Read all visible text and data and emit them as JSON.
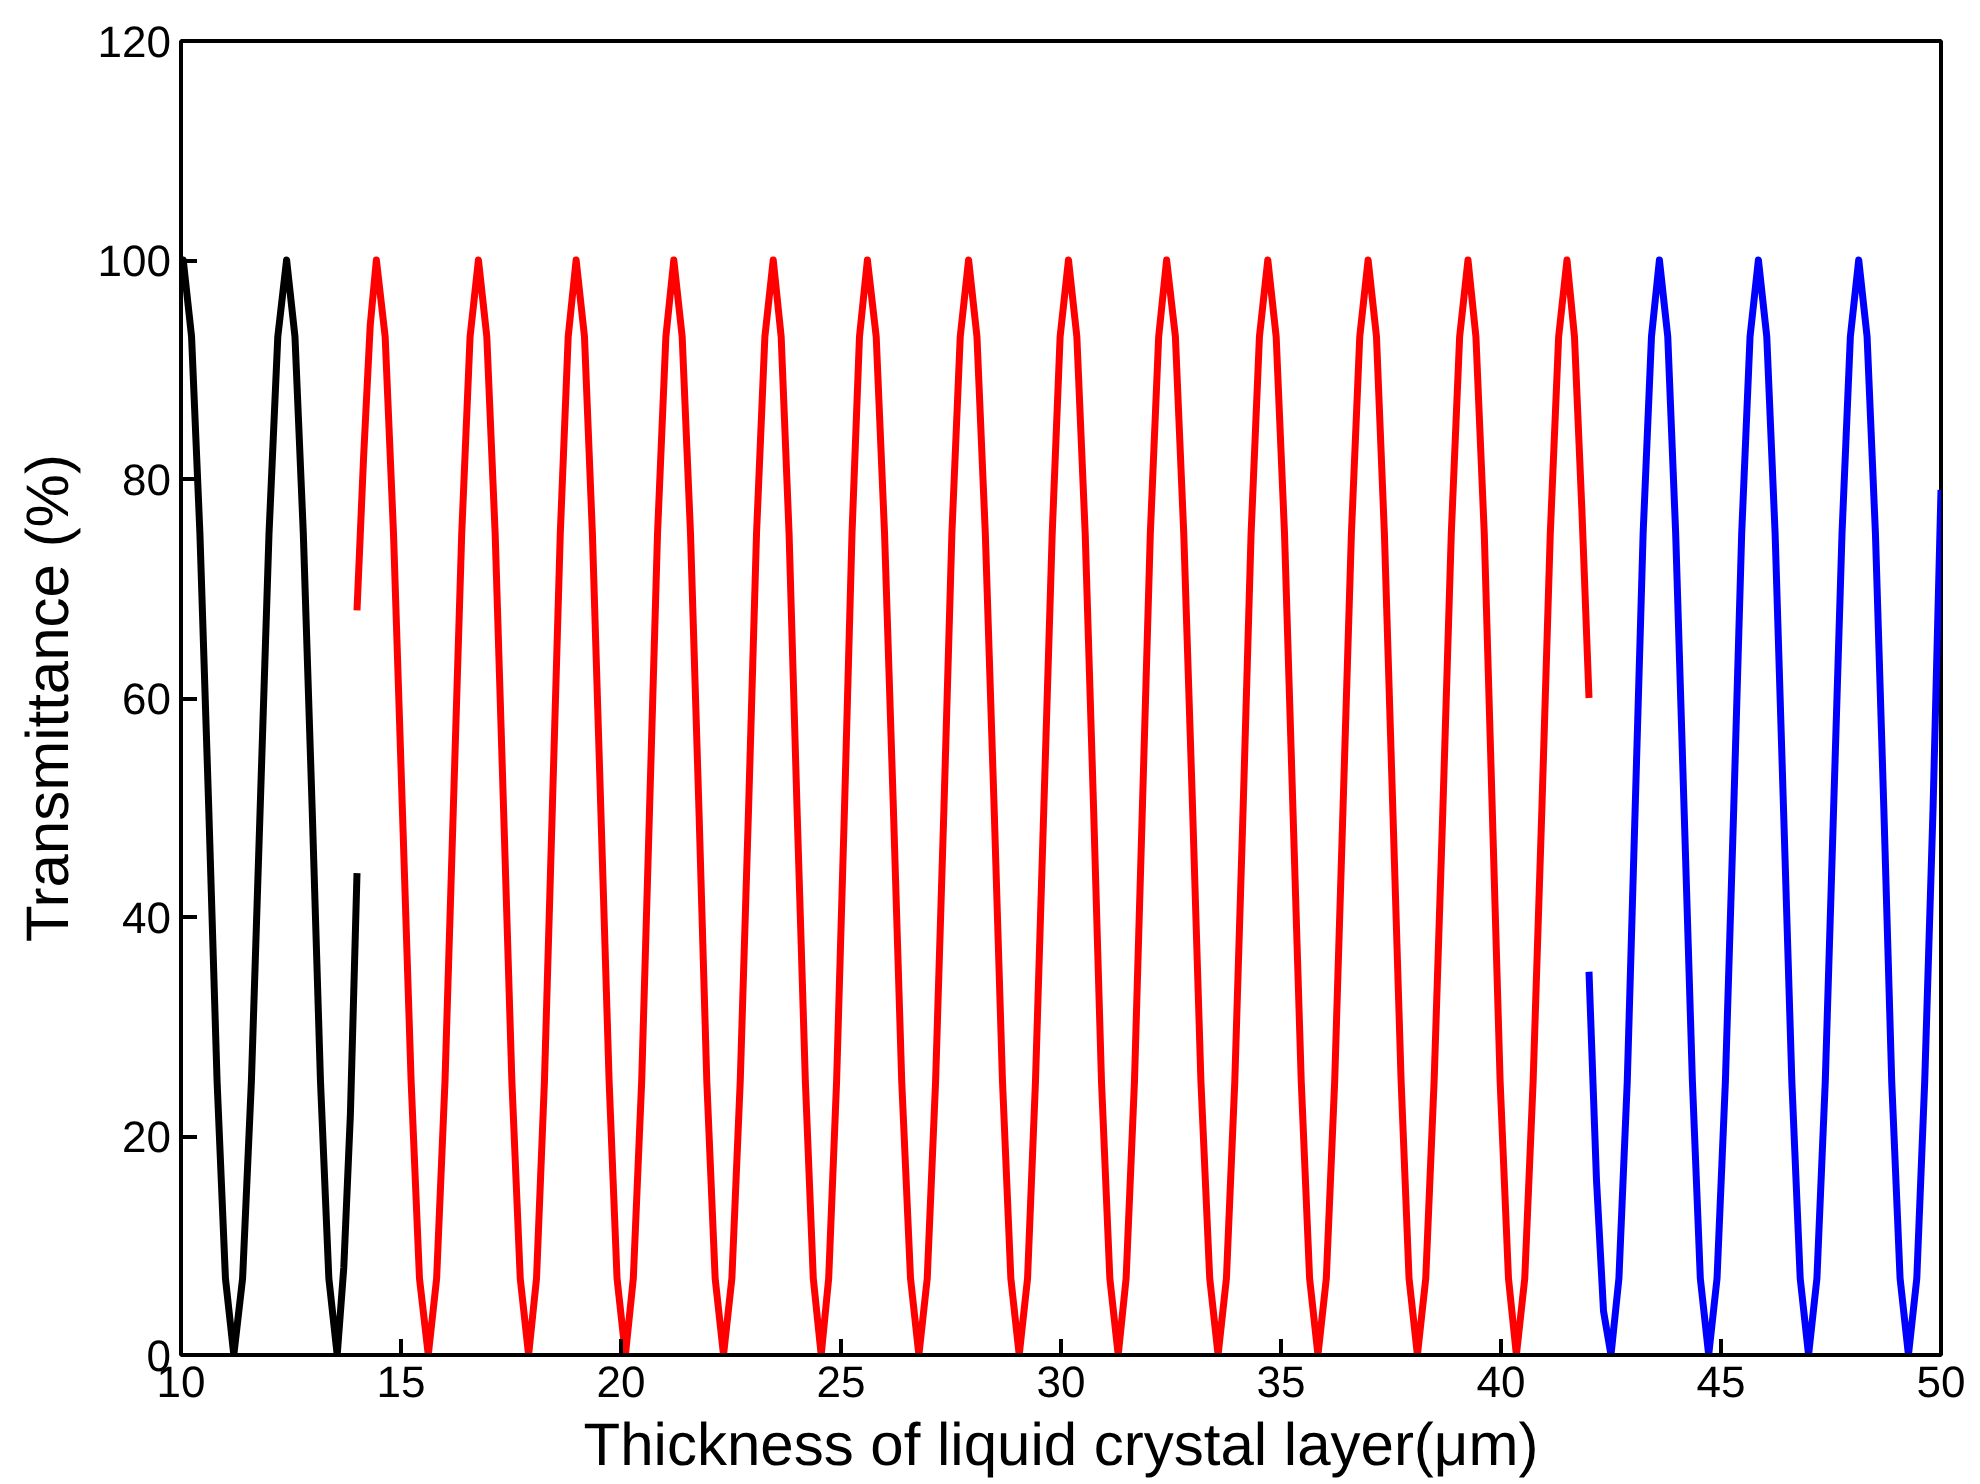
{
  "chart_data": {
    "type": "line",
    "xlabel": "Thickness of liquid crystal layer(μm)",
    "ylabel": "Transmittance (%)",
    "xlim": [
      10,
      50
    ],
    "ylim": [
      0,
      120
    ],
    "xticks": [
      10,
      15,
      20,
      25,
      30,
      35,
      40,
      45,
      50
    ],
    "yticks": [
      0,
      20,
      40,
      60,
      80,
      100,
      120
    ],
    "grid": false,
    "marker": "none",
    "line_style": "solid",
    "series": [
      {
        "color": "#000000",
        "x": [
          10.0,
          10.05,
          10.24,
          10.43,
          10.63,
          10.82,
          11.01,
          11.2,
          11.4,
          11.6,
          11.8,
          12.0,
          12.2,
          12.4,
          12.59,
          12.78,
          12.98,
          13.17,
          13.36,
          13.55,
          13.7,
          13.85,
          14.0
        ],
        "values": [
          99,
          100,
          93,
          75,
          50,
          25,
          7,
          0,
          7,
          25,
          50,
          75,
          93,
          100,
          93,
          75,
          50,
          25,
          7,
          0,
          8,
          22,
          44
        ]
      },
      {
        "color": "#ff0000",
        "x": [
          14.0,
          14.15,
          14.3,
          14.44,
          14.64,
          14.83,
          15.03,
          15.23,
          15.42,
          15.62,
          15.81,
          16.0,
          16.19,
          16.38,
          16.57,
          16.76,
          16.95,
          17.14,
          17.33,
          17.52,
          17.71,
          17.9,
          18.08,
          18.26,
          18.44,
          18.62,
          18.8,
          18.98,
          19.17,
          19.35,
          19.54,
          19.73,
          19.91,
          20.1,
          20.28,
          20.47,
          20.65,
          20.83,
          21.02,
          21.2,
          21.39,
          21.58,
          21.77,
          21.95,
          22.14,
          22.33,
          22.52,
          22.71,
          22.9,
          23.08,
          23.27,
          23.46,
          23.64,
          23.82,
          24.0,
          24.19,
          24.37,
          24.55,
          24.72,
          24.9,
          25.08,
          25.25,
          25.42,
          25.6,
          25.8,
          25.99,
          26.19,
          26.38,
          26.58,
          26.77,
          26.96,
          27.15,
          27.34,
          27.52,
          27.71,
          27.9,
          28.09,
          28.28,
          28.48,
          28.67,
          28.86,
          29.05,
          29.24,
          29.42,
          29.61,
          29.8,
          29.98,
          30.17,
          30.36,
          30.55,
          30.74,
          30.92,
          31.11,
          31.3,
          31.48,
          31.67,
          31.85,
          32.03,
          32.22,
          32.4,
          32.6,
          32.79,
          32.99,
          33.18,
          33.38,
          33.57,
          33.76,
          33.95,
          34.14,
          34.32,
          34.51,
          34.7,
          34.89,
          35.08,
          35.27,
          35.46,
          35.65,
          35.84,
          36.03,
          36.22,
          36.41,
          36.6,
          36.79,
          36.98,
          37.17,
          37.35,
          37.54,
          37.73,
          37.91,
          38.1,
          38.29,
          38.48,
          38.68,
          38.87,
          39.06,
          39.25,
          39.43,
          39.62,
          39.8,
          39.98,
          40.17,
          40.35,
          40.54,
          40.73,
          40.93,
          41.12,
          41.31,
          41.5,
          41.67,
          41.84,
          42.0
        ],
        "values": [
          68,
          82,
          94,
          100,
          93,
          75,
          50,
          25,
          7,
          0,
          7,
          25,
          50,
          75,
          93,
          100,
          93,
          75,
          50,
          25,
          7,
          0,
          7,
          25,
          50,
          75,
          93,
          100,
          93,
          75,
          50,
          25,
          7,
          0,
          7,
          25,
          50,
          75,
          93,
          100,
          93,
          75,
          50,
          25,
          7,
          0,
          7,
          25,
          50,
          75,
          93,
          100,
          93,
          75,
          50,
          25,
          7,
          0,
          7,
          25,
          50,
          75,
          93,
          100,
          93,
          75,
          50,
          25,
          7,
          0,
          7,
          25,
          50,
          75,
          93,
          100,
          93,
          75,
          50,
          25,
          7,
          0,
          7,
          25,
          50,
          75,
          93,
          100,
          93,
          75,
          50,
          25,
          7,
          0,
          7,
          25,
          50,
          75,
          93,
          100,
          93,
          75,
          50,
          25,
          7,
          0,
          7,
          25,
          50,
          75,
          93,
          100,
          93,
          75,
          50,
          25,
          7,
          0,
          7,
          25,
          50,
          75,
          93,
          100,
          93,
          75,
          50,
          25,
          7,
          0,
          7,
          25,
          50,
          75,
          93,
          100,
          93,
          75,
          50,
          25,
          7,
          0,
          7,
          25,
          50,
          75,
          93,
          100,
          93,
          77,
          60
        ]
      },
      {
        "color": "#0000ff",
        "x": [
          42.0,
          42.17,
          42.33,
          42.5,
          42.68,
          42.87,
          43.05,
          43.23,
          43.42,
          43.6,
          43.79,
          43.97,
          44.16,
          44.35,
          44.53,
          44.72,
          44.91,
          45.1,
          45.29,
          45.47,
          45.66,
          45.85,
          46.04,
          46.23,
          46.42,
          46.61,
          46.8,
          46.99,
          47.18,
          47.37,
          47.56,
          47.75,
          47.94,
          48.13,
          48.32,
          48.51,
          48.7,
          48.88,
          49.07,
          49.26,
          49.45,
          49.63,
          49.82,
          50.0
        ],
        "values": [
          35,
          16,
          4,
          0,
          7,
          25,
          50,
          75,
          93,
          100,
          93,
          75,
          50,
          25,
          7,
          0,
          7,
          25,
          50,
          75,
          93,
          100,
          93,
          75,
          50,
          25,
          7,
          0,
          7,
          25,
          50,
          75,
          93,
          100,
          93,
          75,
          50,
          25,
          7,
          0,
          7,
          25,
          50,
          79
        ]
      }
    ]
  }
}
